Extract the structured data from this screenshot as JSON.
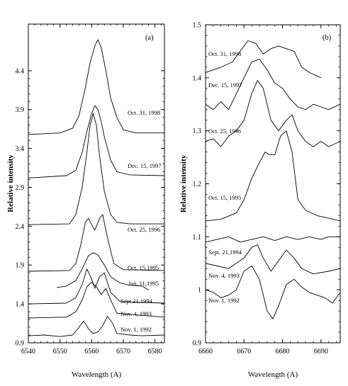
{
  "chart_data": [
    {
      "type": "line",
      "panel_label": "(a)",
      "xlabel": "Wavelength (A)",
      "ylabel": "Relative intensity",
      "xlim": [
        6540,
        6583
      ],
      "ylim": [
        0.9,
        5.0
      ],
      "xticks": [
        "6540",
        "6550",
        "6560",
        "6570",
        "6580"
      ],
      "yticks": [
        "0.9",
        "1.4",
        "1.9",
        "2.4",
        "2.9",
        "3.4",
        "3.9",
        "4.4"
      ],
      "grid": false,
      "series": [
        {
          "name": "Oct. 31, 1998",
          "x": [
            6540,
            6550,
            6554,
            6556,
            6558,
            6559.5,
            6561,
            6562,
            6563,
            6564.5,
            6566,
            6568,
            6570,
            6574,
            6583
          ],
          "y": [
            3.58,
            3.6,
            3.66,
            3.82,
            4.18,
            4.5,
            4.72,
            4.8,
            4.7,
            4.4,
            4.05,
            3.8,
            3.64,
            3.6,
            3.6
          ]
        },
        {
          "name": "Dec. 15, 1997",
          "x": [
            6540,
            6552,
            6555,
            6557,
            6558.5,
            6560,
            6561,
            6562,
            6563,
            6564,
            6566,
            6568,
            6572,
            6583
          ],
          "y": [
            3.02,
            3.05,
            3.12,
            3.35,
            3.62,
            3.85,
            3.95,
            3.9,
            3.75,
            3.55,
            3.25,
            3.1,
            3.06,
            3.05
          ]
        },
        {
          "name": "Oct. 25, 1996",
          "x": [
            6540,
            6553,
            6555,
            6557,
            6558.5,
            6559.5,
            6560.5,
            6561.5,
            6562.5,
            6564,
            6566,
            6568,
            6572,
            6583
          ],
          "y": [
            2.42,
            2.43,
            2.55,
            2.9,
            3.35,
            3.7,
            3.85,
            3.7,
            3.3,
            2.85,
            2.55,
            2.45,
            2.43,
            2.43
          ]
        },
        {
          "name": "Oct. 15,1995",
          "x": [
            6540,
            6553,
            6555,
            6556.5,
            6558,
            6559,
            6560,
            6561,
            6562.5,
            6563.5,
            6565,
            6567,
            6570,
            6583
          ],
          "y": [
            1.82,
            1.83,
            1.92,
            2.15,
            2.45,
            2.5,
            2.42,
            2.35,
            2.5,
            2.55,
            2.25,
            1.92,
            1.84,
            1.83
          ]
        },
        {
          "name": "Jan. 11,1995",
          "x": [
            6549,
            6552,
            6555,
            6557,
            6559,
            6560.5,
            6562,
            6564,
            6566,
            6569,
            6572,
            6576,
            6578
          ],
          "y": [
            1.61,
            1.63,
            1.7,
            1.85,
            2.02,
            2.06,
            2.03,
            1.9,
            1.75,
            1.67,
            1.64,
            1.63,
            1.58
          ]
        },
        {
          "name": "Sept 21,1994",
          "x": [
            6540,
            6552,
            6555,
            6557,
            6558.5,
            6560,
            6561,
            6562.5,
            6564,
            6566,
            6569,
            6583
          ],
          "y": [
            1.4,
            1.41,
            1.48,
            1.65,
            1.85,
            1.72,
            1.6,
            1.75,
            1.8,
            1.55,
            1.43,
            1.41
          ]
        },
        {
          "name": "Nov. 4, 1993",
          "x": [
            6540,
            6552,
            6555,
            6557,
            6558.5,
            6560,
            6561.5,
            6563,
            6564.5,
            6566,
            6568,
            6583
          ],
          "y": [
            1.22,
            1.23,
            1.3,
            1.45,
            1.62,
            1.68,
            1.62,
            1.52,
            1.6,
            1.45,
            1.28,
            1.23
          ]
        },
        {
          "name": "Nov. 1, 1992",
          "x": [
            6540,
            6545,
            6550,
            6554,
            6556,
            6557.5,
            6559,
            6560.5,
            6562,
            6563.5,
            6565,
            6566.5,
            6568,
            6572,
            6576,
            6583
          ],
          "y": [
            0.99,
            1.0,
            0.98,
            1.0,
            1.1,
            1.18,
            1.08,
            1.02,
            1.04,
            1.12,
            1.24,
            1.16,
            1.02,
            1.0,
            0.99,
            1.0
          ]
        }
      ]
    },
    {
      "type": "line",
      "panel_label": "(b)",
      "xlabel": "Wavelength (A)",
      "ylabel": "Relative intensity",
      "xlim": [
        6660,
        6695
      ],
      "ylim": [
        0.9,
        1.5
      ],
      "xticks": [
        "6660",
        "6670",
        "6680",
        "6690"
      ],
      "yticks": [
        "0.9",
        "1",
        "1.1",
        "1.2",
        "1.3",
        "1.4",
        "1.5"
      ],
      "grid": false,
      "series": [
        {
          "name": "Oct. 31, 1998",
          "x": [
            6660,
            6664,
            6667,
            6669,
            6671,
            6673,
            6675,
            6677,
            6679,
            6681,
            6683,
            6685,
            6687,
            6690
          ],
          "y": [
            1.41,
            1.42,
            1.43,
            1.45,
            1.47,
            1.465,
            1.445,
            1.455,
            1.46,
            1.455,
            1.45,
            1.42,
            1.41,
            1.4
          ]
        },
        {
          "name": "Dec. 15, 1997",
          "x": [
            6660,
            6662,
            6664,
            6666,
            6668,
            6670,
            6672,
            6674,
            6676,
            6678,
            6680,
            6682,
            6684,
            6686,
            6688,
            6690,
            6692,
            6695
          ],
          "y": [
            1.35,
            1.34,
            1.355,
            1.34,
            1.37,
            1.4,
            1.43,
            1.435,
            1.415,
            1.39,
            1.38,
            1.36,
            1.345,
            1.34,
            1.35,
            1.345,
            1.34,
            1.35
          ]
        },
        {
          "name": "Oct. 25, 1996",
          "x": [
            6660,
            6662,
            6664,
            6666,
            6668,
            6670,
            6672,
            6673.5,
            6675,
            6677,
            6679,
            6681,
            6682.5,
            6684,
            6686,
            6688,
            6690,
            6692,
            6695
          ],
          "y": [
            1.28,
            1.285,
            1.27,
            1.29,
            1.3,
            1.32,
            1.37,
            1.395,
            1.38,
            1.32,
            1.3,
            1.32,
            1.33,
            1.3,
            1.28,
            1.27,
            1.28,
            1.27,
            1.28
          ]
        },
        {
          "name": "Oct. 15, 1995",
          "x": [
            6660,
            6664,
            6668,
            6670,
            6672,
            6674,
            6675.5,
            6676.5,
            6678,
            6679.5,
            6681,
            6682.5,
            6684,
            6686,
            6689,
            6692,
            6695
          ],
          "y": [
            1.13,
            1.133,
            1.145,
            1.17,
            1.21,
            1.24,
            1.26,
            1.255,
            1.255,
            1.29,
            1.3,
            1.26,
            1.17,
            1.15,
            1.14,
            1.135,
            1.13
          ]
        },
        {
          "name": "Sept. 21,1994",
          "x": [
            6660,
            6663,
            6666,
            6669,
            6672,
            6675,
            6678,
            6681,
            6684,
            6687,
            6690,
            6692,
            6695
          ],
          "y": [
            1.09,
            1.095,
            1.1,
            1.09,
            1.095,
            1.1,
            1.093,
            1.1,
            1.095,
            1.1,
            1.095,
            1.1,
            1.1
          ]
        },
        {
          "name": "Nov. 4, 1993",
          "x": [
            6660,
            6663,
            6666,
            6668,
            6670,
            6672,
            6673.5,
            6675,
            6677,
            6679,
            6681,
            6683,
            6685,
            6688,
            6692,
            6695
          ],
          "y": [
            1.05,
            1.045,
            1.04,
            1.05,
            1.06,
            1.08,
            1.085,
            1.06,
            1.035,
            1.055,
            1.075,
            1.06,
            1.04,
            1.03,
            1.035,
            1.04
          ]
        },
        {
          "name": "Nov. 1, 1992",
          "x": [
            6660,
            6662,
            6664,
            6666,
            6668,
            6670,
            6672,
            6674,
            6676,
            6677.5,
            6679,
            6681,
            6683,
            6685,
            6687,
            6689,
            6691,
            6693,
            6695
          ],
          "y": [
            1.0,
            0.995,
            0.985,
            0.99,
            1.0,
            1.035,
            1.045,
            1.02,
            0.96,
            0.945,
            0.97,
            1.01,
            1.02,
            1.005,
            0.995,
            0.99,
            0.985,
            0.975,
            0.995
          ]
        }
      ]
    }
  ]
}
